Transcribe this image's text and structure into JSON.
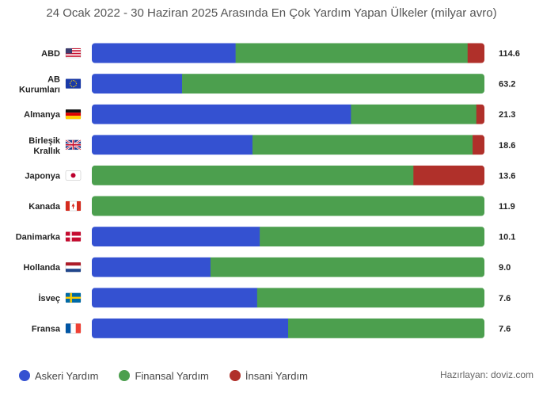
{
  "chart_data": {
    "type": "bar",
    "orientation": "horizontal",
    "stacked": true,
    "normalized": true,
    "title": "24 Ocak 2022 - 30 Haziran 2025 Arasında En Çok Yardım Yapan Ülkeler (milyar avro)",
    "categories": [
      {
        "label": "ABD",
        "flag": "us-flag"
      },
      {
        "label": "AB Kurumları",
        "flag": "eu-flag"
      },
      {
        "label": "Almanya",
        "flag": "de-flag"
      },
      {
        "label": "Birleşik Krallık",
        "flag": "uk-flag"
      },
      {
        "label": "Japonya",
        "flag": "jp-flag"
      },
      {
        "label": "Kanada",
        "flag": "ca-flag"
      },
      {
        "label": "Danimarka",
        "flag": "dk-flag"
      },
      {
        "label": "Hollanda",
        "flag": "nl-flag"
      },
      {
        "label": "İsveç",
        "flag": "se-flag"
      },
      {
        "label": "Fransa",
        "flag": "fr-flag"
      }
    ],
    "totals": [
      "114.6",
      "63.2",
      "21.3",
      "18.6",
      "13.6",
      "11.9",
      "10.1",
      "9.0",
      "7.6",
      "7.6"
    ],
    "series": [
      {
        "name": "Askeri Yardım",
        "color": "#3451d1",
        "values": [
          41.97,
          14.53,
          14.06,
          7.61,
          0,
          0,
          4.32,
          2.72,
          3.2,
          3.8
        ]
      },
      {
        "name": "Finansal Yardım",
        "color": "#4c9f4e",
        "values": [
          67.72,
          48.67,
          6.8,
          10.43,
          11.14,
          11.9,
          5.78,
          6.28,
          4.4,
          3.8
        ]
      },
      {
        "name": "İnsani Yardım",
        "color": "#b0302a",
        "values": [
          4.91,
          0,
          0.44,
          0.56,
          2.46,
          0,
          0,
          0,
          0,
          0
        ]
      }
    ]
  },
  "credit": "Hazırlayan: doviz.com"
}
